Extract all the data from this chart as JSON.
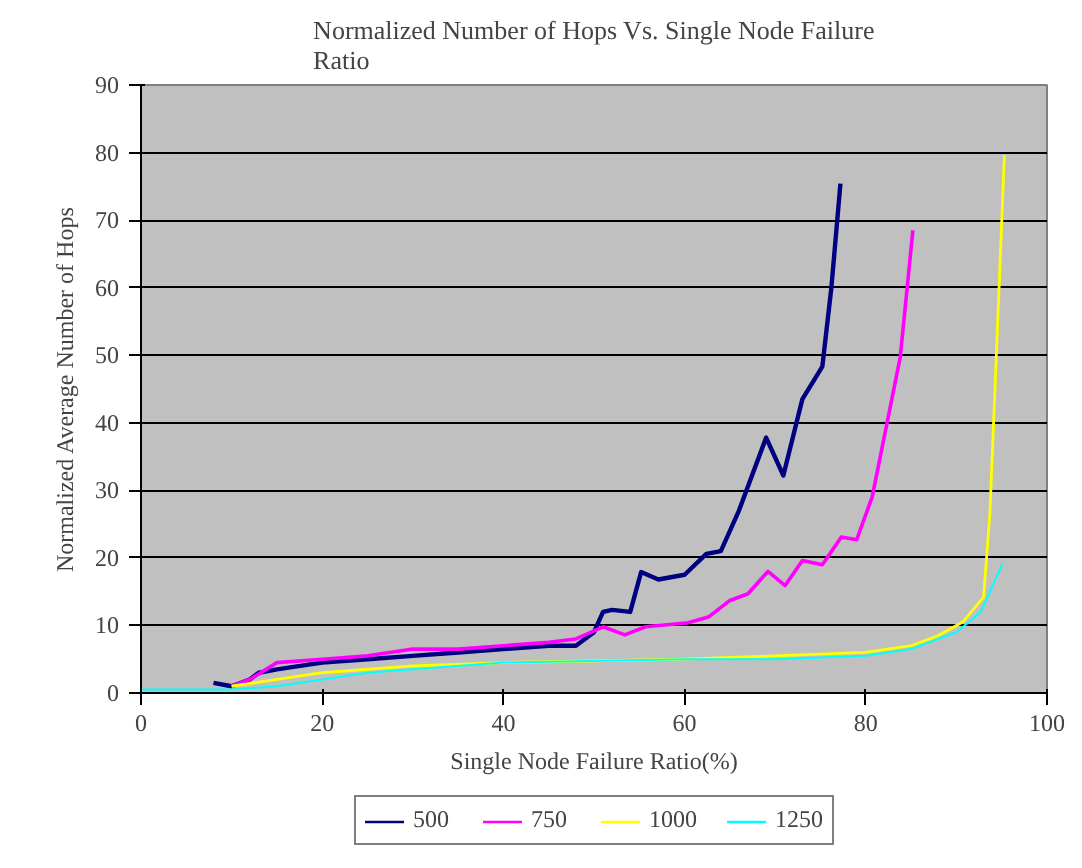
{
  "chart_data": {
    "type": "line",
    "title": "Normalized Number of Hops Vs. Single Node Failure Ratio",
    "xlabel": "Single Node Failure Ratio(%)",
    "ylabel": "Normalized Average Number of Hops",
    "xlim": [
      0,
      100
    ],
    "xticks": [
      0,
      20,
      40,
      60,
      80,
      100
    ],
    "ylim": [
      0,
      90
    ],
    "yticks": [
      0,
      10,
      20,
      30,
      40,
      50,
      60,
      70,
      80,
      90
    ],
    "grid": "y",
    "legend": "bottom",
    "marker": "none",
    "line_style": "solid",
    "series": [
      {
        "name": "500",
        "color": "#000080",
        "x": [
          8,
          10,
          12,
          13,
          15,
          20,
          25,
          30,
          35,
          40,
          45,
          48,
          50,
          51,
          52,
          54,
          55.2,
          57.1,
          60,
          62.4,
          64,
          66,
          69,
          70.9,
          73,
          75.2,
          76.2,
          77.2
        ],
        "values": [
          1.5,
          1,
          2,
          3,
          3.5,
          4.5,
          5,
          5.5,
          6,
          6.5,
          7,
          7,
          9,
          12,
          12.3,
          12,
          17.9,
          16.8,
          17.5,
          20.6,
          21,
          27,
          37.8,
          32.2,
          43.5,
          48.3,
          60,
          75.4
        ]
      },
      {
        "name": "750",
        "color": "#ff00ff",
        "x": [
          10,
          12,
          15,
          20,
          25,
          30,
          35,
          40,
          45,
          48,
          51,
          53.4,
          55.7,
          60.4,
          62.7,
          65,
          67,
          69.2,
          71.1,
          73,
          75.2,
          77.3,
          79,
          80.7,
          83.8,
          85.2
        ],
        "values": [
          1,
          2,
          4.5,
          5,
          5.5,
          6.5,
          6.5,
          7,
          7.5,
          8,
          9.8,
          8.6,
          9.8,
          10.4,
          11.3,
          13.7,
          14.7,
          18,
          15.9,
          19.6,
          19,
          23.1,
          22.7,
          29,
          49.7,
          68.5
        ]
      },
      {
        "name": "1000",
        "color": "#ffff00",
        "x": [
          10,
          15,
          20,
          30,
          40,
          60,
          80,
          85,
          88,
          90.7,
          93,
          93.7,
          95.3
        ],
        "values": [
          1,
          2,
          3,
          4,
          4.5,
          5,
          6,
          7,
          8.5,
          10.5,
          14.2,
          26.6,
          79.6
        ]
      },
      {
        "name": "1250",
        "color": "#00ffff",
        "x": [
          0,
          10,
          15,
          20,
          25,
          30,
          40,
          60,
          70,
          80,
          85,
          90,
          92.7,
          95.1
        ],
        "values": [
          0.5,
          0.5,
          1,
          2,
          3,
          3.5,
          4.5,
          5,
          5,
          5.5,
          6.5,
          9,
          12,
          19.2
        ]
      }
    ]
  }
}
